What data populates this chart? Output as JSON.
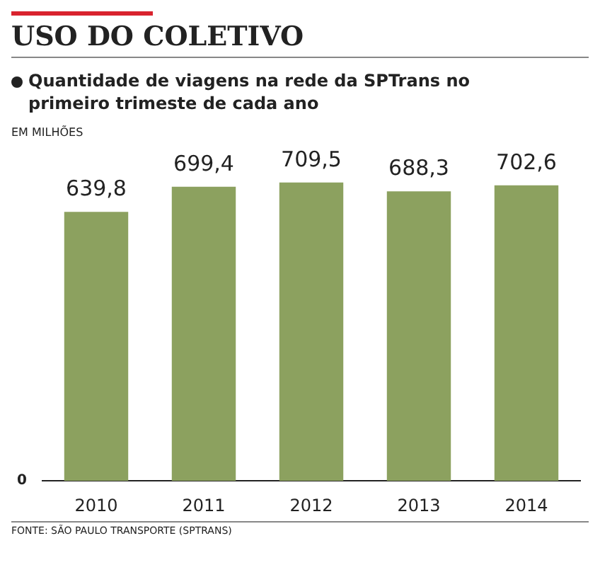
{
  "chart_data": {
    "type": "bar",
    "title": "USO DO COLETIVO",
    "subtitle": "Quantidade de viagens na rede da SPTrans no primeiro trimeste de cada ano",
    "ylabel": "EM MILHÕES",
    "categories": [
      "2010",
      "2011",
      "2012",
      "2013",
      "2014"
    ],
    "values": [
      639.8,
      699.4,
      709.5,
      688.3,
      702.6
    ],
    "value_labels": [
      "639,8",
      "699,4",
      "709,5",
      "688,3",
      "702,6"
    ],
    "color": "#8ca15f",
    "annotations": [
      "0",
      "FONTE: SÃO PAULO TRANSPORTE (SPTRANS)"
    ]
  }
}
